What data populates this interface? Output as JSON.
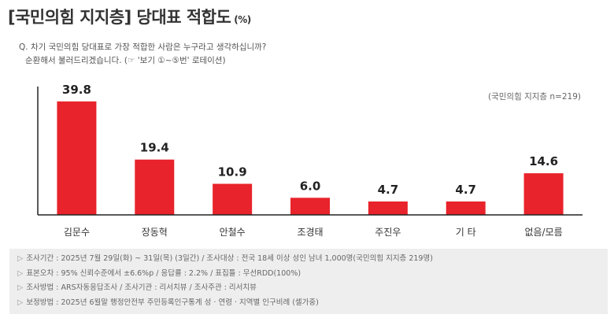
{
  "title": "[국민의힘 지지층] 당대표 적합도",
  "title_unit": "(%)",
  "question": {
    "line1": "Q. 차기 국민의힘 당대표로 가장 적합한 사람은 누구라고 생각하십니까?",
    "line2": "순환해서 불러드리겠습니다. (☞ '보기 ①~⑤번' 로테이션)"
  },
  "colors": {
    "bar": "#e8232b",
    "axis": "#222222"
  },
  "chart_data": {
    "type": "bar",
    "categories": [
      "김문수",
      "장동혁",
      "안철수",
      "조경태",
      "주진우",
      "기 타",
      "없음/모름"
    ],
    "values": [
      39.8,
      19.4,
      10.9,
      6.0,
      4.7,
      4.7,
      14.6
    ],
    "value_labels": [
      "39.8",
      "19.4",
      "10.9",
      "6.0",
      "4.7",
      "4.7",
      "14.6"
    ],
    "ylim": [
      0,
      45
    ],
    "annotation": "(국민의힘 지지층 n=219)",
    "title": "[국민의힘 지지층] 당대표 적합도",
    "grid": false
  },
  "footer": [
    "조사기간 : 2025년 7월 29일(화) ~ 31일(목) (3일간) / 조사대상 : 전국 18세 이상 성인 남녀 1,000명(국민의힘 지지층 219명)",
    "표본오차 : 95% 신뢰수준에서 ±6.6%p / 응답률 : 2.2% / 표집틀 : 무선RDD(100%)",
    "조사방법 : ARS자동응답조사 / 조사기관 : 리서치뷰 / 조사주관 : 리서치뷰",
    "보정방법 : 2025년 6월말 행정안전부 주민등록인구통계 성 · 연령 · 지역별 인구비례 (셀가중)"
  ],
  "footer_marker": "▷"
}
